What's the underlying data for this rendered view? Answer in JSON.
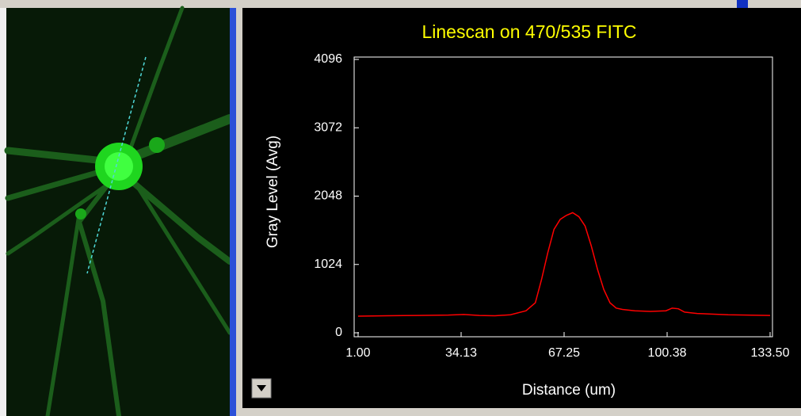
{
  "chart_data": {
    "type": "line",
    "title": "Linescan on 470/535 FITC",
    "x_label": "Distance (um)",
    "y_label": "Gray Level (Avg)",
    "x": [
      1,
      10,
      20,
      30,
      35,
      40,
      45,
      50,
      55,
      58,
      60,
      62,
      64,
      66,
      68,
      70,
      72,
      74,
      76,
      78,
      80,
      82,
      84,
      86,
      90,
      95,
      100,
      102,
      104,
      106,
      110,
      120,
      133.5
    ],
    "values": [
      250,
      255,
      260,
      265,
      275,
      260,
      255,
      270,
      330,
      450,
      800,
      1200,
      1550,
      1700,
      1760,
      1800,
      1740,
      1600,
      1300,
      950,
      650,
      450,
      370,
      350,
      330,
      320,
      330,
      370,
      360,
      310,
      290,
      270,
      260
    ],
    "color": "#ff0000",
    "xlim": [
      1,
      133.5
    ],
    "xticks": [
      {
        "value": 1,
        "label": "1.00"
      },
      34.13,
      67.25,
      100.38,
      {
        "value": 133.5,
        "label": "133.50"
      }
    ],
    "ylim": [
      0,
      4096
    ],
    "yticks": [
      0,
      1024,
      2048,
      3072,
      4096
    ],
    "grid": false
  }
}
